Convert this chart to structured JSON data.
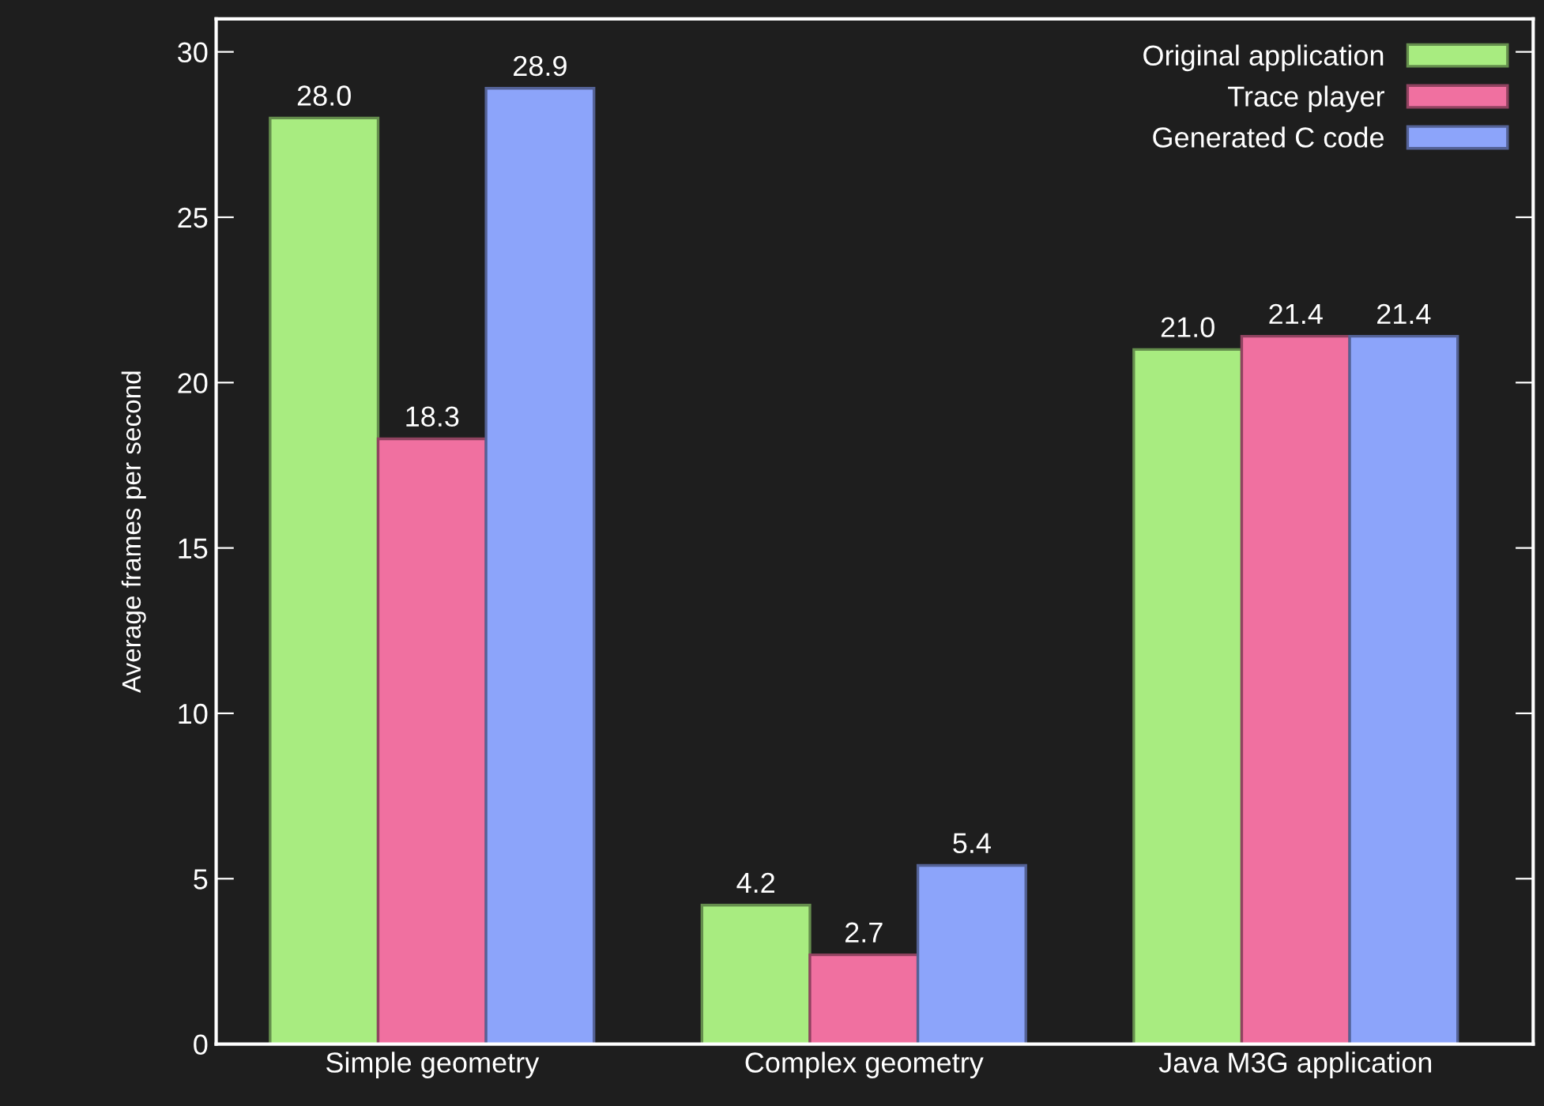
{
  "chart_data": {
    "type": "bar",
    "ylabel": "Average frames per second",
    "categories": [
      "Simple geometry",
      "Complex geometry",
      "Java M3G application"
    ],
    "series": [
      {
        "name": "Original application",
        "color": "#a8ec80",
        "values": [
          28.0,
          4.2,
          21.0
        ],
        "value_labels": [
          "28.0",
          "4.2",
          "21.0"
        ]
      },
      {
        "name": "Trace player",
        "color": "#f070a0",
        "values": [
          18.3,
          2.7,
          21.4
        ],
        "value_labels": [
          "18.3",
          "2.7",
          "21.4"
        ]
      },
      {
        "name": "Generated C code",
        "color": "#8ca4fa",
        "values": [
          28.9,
          5.4,
          21.4
        ],
        "value_labels": [
          "28.9",
          "5.4",
          "21.4"
        ]
      }
    ],
    "ylim": [
      0,
      31
    ],
    "yticks": [
      0,
      5,
      10,
      15,
      20,
      25,
      30
    ],
    "legend": "top right",
    "grid": false
  }
}
